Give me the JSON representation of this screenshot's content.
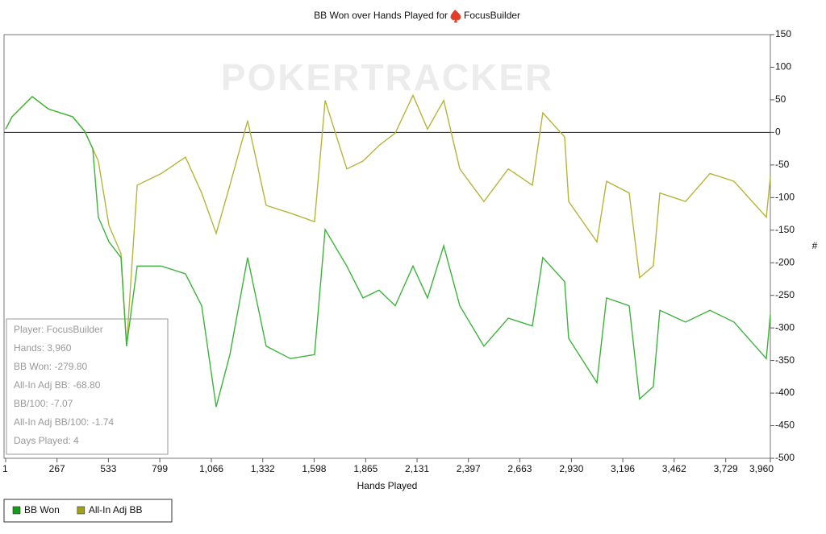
{
  "chart_data": {
    "type": "line",
    "title": "BB Won over Hands Played for",
    "title_player": "FocusBuilder",
    "watermark": "POKERTRACKER",
    "xlabel": "Hands Played",
    "ylabel": "#",
    "x": [
      1,
      34,
      139,
      222,
      348,
      410,
      452,
      481,
      536,
      598,
      627,
      682,
      807,
      932,
      1016,
      1091,
      1162,
      1254,
      1350,
      1475,
      1600,
      1655,
      1767,
      1851,
      1934,
      2018,
      2110,
      2185,
      2269,
      2352,
      2477,
      2603,
      2728,
      2782,
      2895,
      2916,
      3062,
      3112,
      3229,
      3283,
      3354,
      3388,
      3521,
      3647,
      3772,
      3939,
      3960
    ],
    "series": [
      {
        "name": "BB Won",
        "color": "#3cb43c",
        "legend_color": "#1a9a1a",
        "values": [
          5,
          24,
          55,
          36,
          24,
          2,
          -25,
          -130,
          -168,
          -192,
          -328,
          -205,
          -205,
          -217,
          -266,
          -421,
          -341,
          -192,
          -328,
          -347,
          -341,
          -149,
          -205,
          -254,
          -242,
          -266,
          -205,
          -254,
          -174,
          -266,
          -328,
          -285,
          -297,
          -192,
          -229,
          -316,
          -384,
          -254,
          -266,
          -409,
          -390,
          -273,
          -291,
          -273,
          -291,
          -347,
          -279.8
        ]
      },
      {
        "name": "All-In Adj BB",
        "color": "#b5b53a",
        "legend_color": "#a0a020",
        "values": [
          5,
          24,
          55,
          36,
          24,
          2,
          -25,
          -44,
          -143,
          -186,
          -328,
          -81,
          -63,
          -38,
          -93,
          -155,
          -81,
          18,
          -112,
          -124,
          -137,
          49,
          -56,
          -44,
          -20,
          -1,
          57,
          5,
          49,
          -56,
          -106,
          -56,
          -81,
          30,
          -7,
          -106,
          -168,
          -75,
          -93,
          -223,
          -205,
          -93,
          -106,
          -63,
          -75,
          -130,
          -68.8
        ]
      }
    ],
    "reference_line": 0,
    "xlim": [
      1,
      3960
    ],
    "xticks": [
      1,
      267,
      533,
      799,
      {
        "value": 1066,
        "label": "1,066"
      },
      {
        "value": 1332,
        "label": "1,332"
      },
      {
        "value": 1598,
        "label": "1,598"
      },
      {
        "value": 1865,
        "label": "1,865"
      },
      {
        "value": 2131,
        "label": "2,131"
      },
      {
        "value": 2397,
        "label": "2,397"
      },
      {
        "value": 2663,
        "label": "2,663"
      },
      {
        "value": 2930,
        "label": "2,930"
      },
      {
        "value": 3196,
        "label": "3,196"
      },
      {
        "value": 3462,
        "label": "3,462"
      },
      {
        "value": 3729,
        "label": "3,729"
      },
      {
        "value": 3960,
        "label": "3,960"
      }
    ],
    "ylim": [
      -500,
      150
    ],
    "yticks": [
      -500,
      -450,
      -400,
      -350,
      -300,
      -250,
      -200,
      -150,
      -100,
      -50,
      0,
      50,
      100,
      150
    ],
    "stats": [
      "Player: FocusBuilder",
      "Hands: 3,960",
      "BB Won: -279.80",
      "All-In Adj BB: -68.80",
      "BB/100: -7.07",
      "All-In Adj BB/100: -1.74",
      "Days Played: 4"
    ]
  }
}
